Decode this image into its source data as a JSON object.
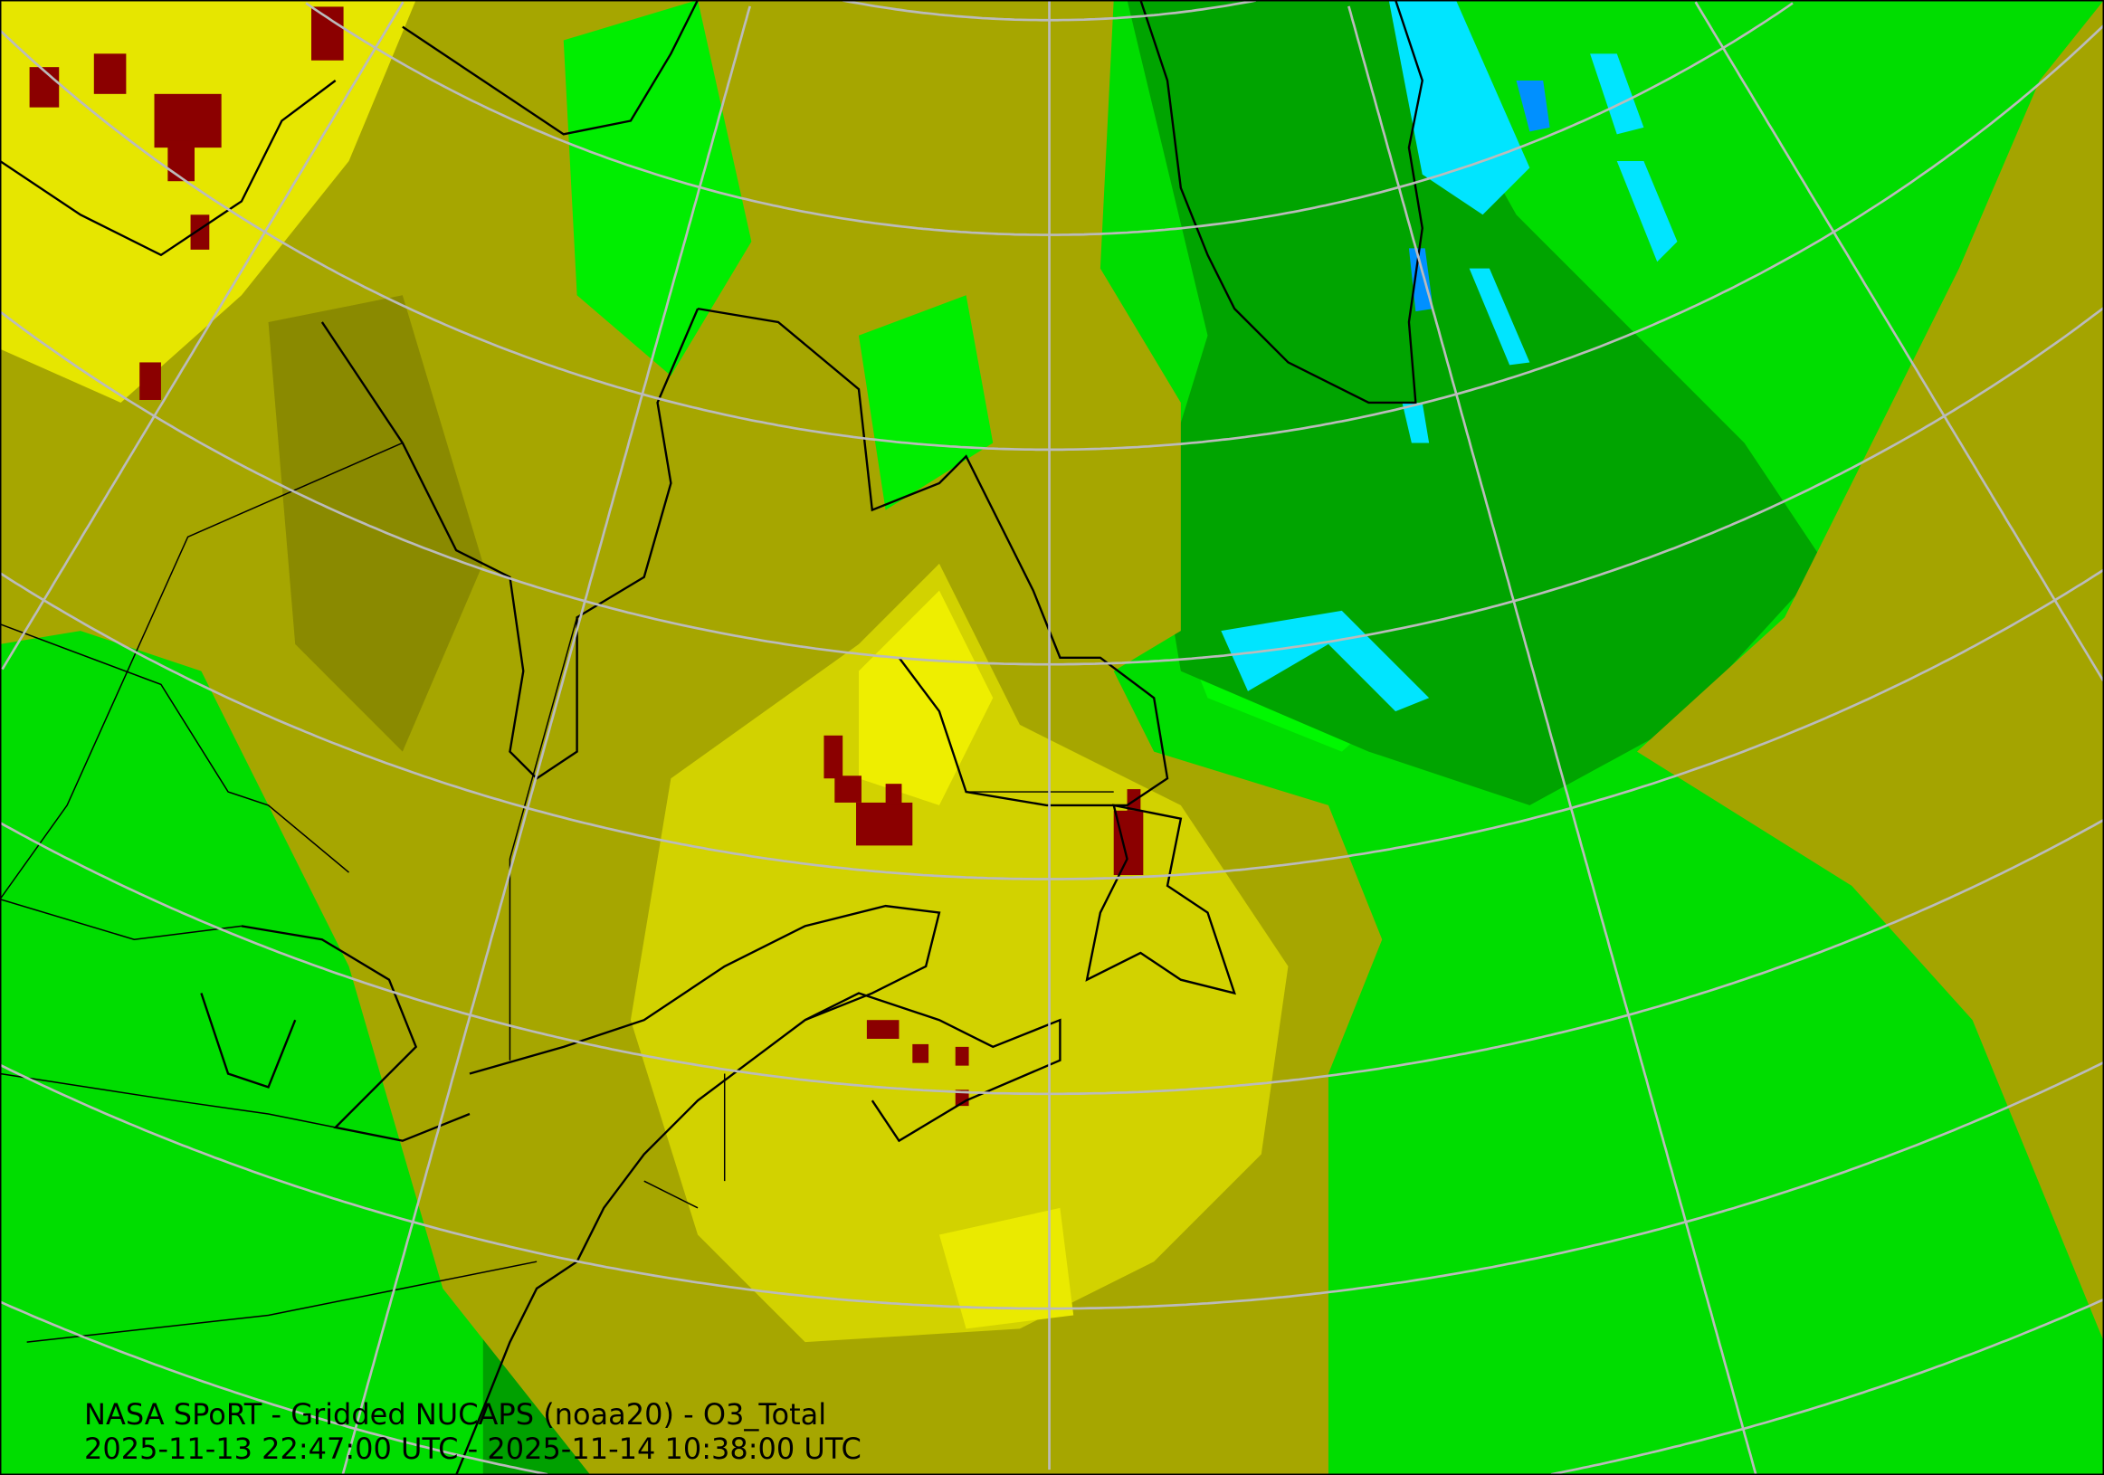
{
  "map": {
    "product_title": "NASA SPoRT - Gridded NUCAPS (noaa20) - O3_Total",
    "time_range": "2025-11-13 22:47:00 UTC - 2025-11-14 10:38:00 UTC",
    "satellite": "noaa20",
    "variable": "O3_Total",
    "projection": "lambert-conformal",
    "graticule": true,
    "colors": {
      "low_cyan": "#00e5ff",
      "blue": "#0090ff",
      "dark_green": "#00a000",
      "green": "#00dd00",
      "bright_green": "#00ff00",
      "olive": "#a8a800",
      "yellow": "#d8d800",
      "bright_yellow": "#f4f400",
      "high_red": "#8b0000",
      "graticule": "#bbbbbb",
      "coastline": "#000000"
    }
  }
}
